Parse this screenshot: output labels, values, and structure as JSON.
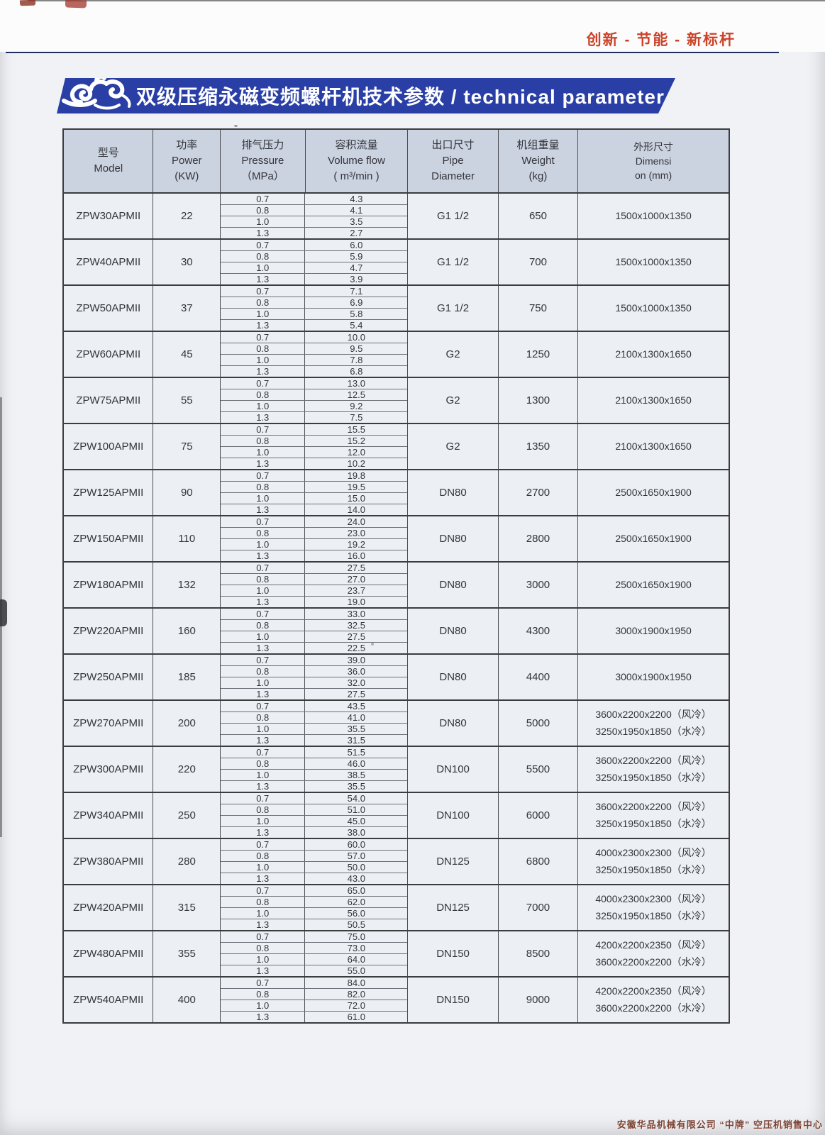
{
  "page": {
    "slogan": "创新 - 节能 - 新标杆",
    "footer": "安徽华品机械有限公司 “中牌” 空压机销售中心",
    "colors": {
      "accent_red": "#cc4228",
      "banner_blue": "#2a3fa5",
      "rule_navy": "#1e2c5e",
      "header_bg": "#cbd2e0",
      "table_bg": "#eceff4"
    }
  },
  "banner": {
    "title": "双级压缩永磁变频螺杆机技术参数 / technical parameter",
    "ornament": "auspicious-cloud"
  },
  "table": {
    "headers": {
      "model": [
        "型号",
        "Model"
      ],
      "power": [
        "功率",
        "Power",
        "(KW)"
      ],
      "pressure": [
        "排气压力",
        "Pressure",
        "（MPa）"
      ],
      "volume": [
        "容积流量",
        "Volume flow",
        "( m³/min )"
      ],
      "pipe": [
        "出口尺寸",
        "Pipe",
        "Diameter"
      ],
      "weight": [
        "机组重量",
        "Weight",
        "(kg)"
      ],
      "dimension": [
        "外形尺寸",
        "Dimensi",
        "on (mm)"
      ]
    },
    "pressures": [
      "0.7",
      "0.8",
      "1.0",
      "1.3"
    ],
    "rows": [
      {
        "model": "ZPW30APMII",
        "power": "22",
        "flows": [
          "4.3",
          "4.1",
          "3.5",
          "2.7"
        ],
        "pipe": "G1 1/2",
        "weight": "650",
        "dims": [
          "1500x1000x1350"
        ]
      },
      {
        "model": "ZPW40APMII",
        "power": "30",
        "flows": [
          "6.0",
          "5.9",
          "4.7",
          "3.9"
        ],
        "pipe": "G1 1/2",
        "weight": "700",
        "dims": [
          "1500x1000x1350"
        ]
      },
      {
        "model": "ZPW50APMII",
        "power": "37",
        "flows": [
          "7.1",
          "6.9",
          "5.8",
          "5.4"
        ],
        "pipe": "G1 1/2",
        "weight": "750",
        "dims": [
          "1500x1000x1350"
        ]
      },
      {
        "model": "ZPW60APMII",
        "power": "45",
        "flows": [
          "10.0",
          "9.5",
          "7.8",
          "6.8"
        ],
        "pipe": "G2",
        "weight": "1250",
        "dims": [
          "2100x1300x1650"
        ]
      },
      {
        "model": "ZPW75APMII",
        "power": "55",
        "flows": [
          "13.0",
          "12.5",
          "9.2",
          "7.5"
        ],
        "pipe": "G2",
        "weight": "1300",
        "dims": [
          "2100x1300x1650"
        ]
      },
      {
        "model": "ZPW100APMII",
        "power": "75",
        "flows": [
          "15.5",
          "15.2",
          "12.0",
          "10.2"
        ],
        "pipe": "G2",
        "weight": "1350",
        "dims": [
          "2100x1300x1650"
        ]
      },
      {
        "model": "ZPW125APMII",
        "power": "90",
        "flows": [
          "19.8",
          "19.5",
          "15.0",
          "14.0"
        ],
        "pipe": "DN80",
        "weight": "2700",
        "dims": [
          "2500x1650x1900"
        ]
      },
      {
        "model": "ZPW150APMII",
        "power": "110",
        "flows": [
          "24.0",
          "23.0",
          "19.2",
          "16.0"
        ],
        "pipe": "DN80",
        "weight": "2800",
        "dims": [
          "2500x1650x1900"
        ]
      },
      {
        "model": "ZPW180APMII",
        "power": "132",
        "flows": [
          "27.5",
          "27.0",
          "23.7",
          "19.0"
        ],
        "pipe": "DN80",
        "weight": "3000",
        "dims": [
          "2500x1650x1900"
        ]
      },
      {
        "model": "ZPW220APMII",
        "power": "160",
        "flows": [
          "33.0",
          "32.5",
          "27.5",
          "22.5"
        ],
        "pipe": "DN80",
        "weight": "4300",
        "dims": [
          "3000x1900x1950"
        ]
      },
      {
        "model": "ZPW250APMII",
        "power": "185",
        "flows": [
          "39.0",
          "36.0",
          "32.0",
          "27.5"
        ],
        "pipe": "DN80",
        "weight": "4400",
        "dims": [
          "3000x1900x1950"
        ]
      },
      {
        "model": "ZPW270APMII",
        "power": "200",
        "flows": [
          "43.5",
          "41.0",
          "35.5",
          "31.5"
        ],
        "pipe": "DN80",
        "weight": "5000",
        "dims": [
          "3600x2200x2200（风冷）",
          "3250x1950x1850（水冷）"
        ]
      },
      {
        "model": "ZPW300APMII",
        "power": "220",
        "flows": [
          "51.5",
          "46.0",
          "38.5",
          "35.5"
        ],
        "pipe": "DN100",
        "weight": "5500",
        "dims": [
          "3600x2200x2200（风冷）",
          "3250x1950x1850（水冷）"
        ]
      },
      {
        "model": "ZPW340APMII",
        "power": "250",
        "flows": [
          "54.0",
          "51.0",
          "45.0",
          "38.0"
        ],
        "pipe": "DN100",
        "weight": "6000",
        "dims": [
          "3600x2200x2200（风冷）",
          "3250x1950x1850（水冷）"
        ]
      },
      {
        "model": "ZPW380APMII",
        "power": "280",
        "flows": [
          "60.0",
          "57.0",
          "50.0",
          "43.0"
        ],
        "pipe": "DN125",
        "weight": "6800",
        "dims": [
          "4000x2300x2300（风冷）",
          "3250x1950x1850（水冷）"
        ]
      },
      {
        "model": "ZPW420APMII",
        "power": "315",
        "flows": [
          "65.0",
          "62.0",
          "56.0",
          "50.5"
        ],
        "pipe": "DN125",
        "weight": "7000",
        "dims": [
          "4000x2300x2300（风冷）",
          "3250x1950x1850（水冷）"
        ]
      },
      {
        "model": "ZPW480APMII",
        "power": "355",
        "flows": [
          "75.0",
          "73.0",
          "64.0",
          "55.0"
        ],
        "pipe": "DN150",
        "weight": "8500",
        "dims": [
          "4200x2200x2350（风冷）",
          "3600x2200x2200（水冷）"
        ]
      },
      {
        "model": "ZPW540APMII",
        "power": "400",
        "flows": [
          "84.0",
          "82.0",
          "72.0",
          "61.0"
        ],
        "pipe": "DN150",
        "weight": "9000",
        "dims": [
          "4200x2200x2350（风冷）",
          "3600x2200x2200（水冷）"
        ]
      }
    ]
  }
}
